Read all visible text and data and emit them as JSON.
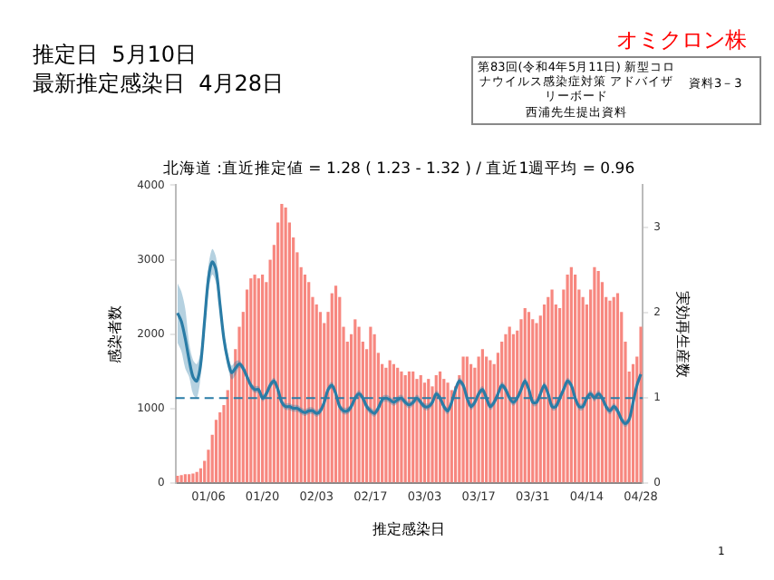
{
  "chart_data": {
    "type": "bar",
    "title": "北海道 :直近推定値 = 1.28 ( 1.23 - 1.32 ) / 直近1週平均 = 0.96",
    "xlabel": "推定感染日",
    "ylabel": "感染者数",
    "y2label": "実効再生産数",
    "annotations": [
      "推定日  5月10日",
      "最新推定感染日  4月28日",
      "オミクロン株",
      "第83回(令和4年5月11日) 新型コロナウイルス感染症対策 アドバイザリーボード",
      "資料3－3",
      "西浦先生提出資料",
      "1"
    ],
    "categories": [
      null,
      null,
      null,
      null,
      null,
      null,
      null,
      null,
      "01/06",
      null,
      null,
      null,
      null,
      null,
      null,
      null,
      null,
      null,
      null,
      null,
      null,
      null,
      "01/20",
      null,
      null,
      null,
      null,
      null,
      null,
      null,
      null,
      null,
      null,
      null,
      null,
      null,
      "02/03",
      null,
      null,
      null,
      null,
      null,
      null,
      null,
      null,
      null,
      null,
      null,
      null,
      null,
      "02/17",
      null,
      null,
      null,
      null,
      null,
      null,
      null,
      null,
      null,
      null,
      null,
      null,
      null,
      "03/03",
      null,
      null,
      null,
      null,
      null,
      null,
      null,
      null,
      null,
      null,
      null,
      null,
      null,
      "03/17",
      null,
      null,
      null,
      null,
      null,
      null,
      null,
      null,
      null,
      null,
      null,
      null,
      null,
      "03/31",
      null,
      null,
      null,
      null,
      null,
      null,
      null,
      null,
      null,
      null,
      null,
      null,
      null,
      "04/14",
      null,
      null,
      null,
      null,
      null,
      null,
      null,
      null,
      null,
      null,
      null,
      null,
      null,
      "04/28"
    ],
    "series": [
      {
        "color": "#f7877f",
        "values": [
          100,
          110,
          120,
          120,
          130,
          150,
          200,
          300,
          450,
          650,
          850,
          950,
          1050,
          1250,
          1500,
          1800,
          2100,
          2300,
          2600,
          2750,
          2800,
          2750,
          2800,
          2700,
          3000,
          3200,
          3500,
          3750,
          3700,
          3500,
          3300,
          3100,
          2900,
          2800,
          2700,
          2500,
          2400,
          2300,
          2150,
          2300,
          2550,
          2650,
          2500,
          2100,
          1900,
          2000,
          2200,
          2100,
          1900,
          1800,
          2100,
          2000,
          1750,
          1600,
          1550,
          1650,
          1600,
          1550,
          1500,
          1450,
          1500,
          1500,
          1400,
          1450,
          1350,
          1400,
          1300,
          1450,
          1500,
          1400,
          1350,
          1250,
          1300,
          1450,
          1700,
          1700,
          1600,
          1550,
          1700,
          1800,
          1700,
          1650,
          1600,
          1750,
          1900,
          2000,
          2100,
          2000,
          2050,
          2200,
          2350,
          2300,
          2200,
          2150,
          2250,
          2400,
          2500,
          2600,
          2400,
          2350,
          2600,
          2800,
          2900,
          2800,
          2600,
          2500,
          2400,
          2600,
          2900,
          2850,
          2700,
          2500,
          2450,
          2500,
          2550,
          2300,
          1900,
          1500,
          1600,
          1700,
          2100
        ]
      },
      {
        "type": "line",
        "axis": "y2",
        "color": "#2a7ca6",
        "values": [
          2.0,
          1.9,
          1.7,
          1.45,
          1.25,
          1.2,
          1.4,
          1.9,
          2.4,
          2.6,
          2.5,
          2.1,
          1.7,
          1.45,
          1.3,
          1.35,
          1.4,
          1.35,
          1.25,
          1.15,
          1.1,
          1.1,
          1.0,
          1.05,
          1.15,
          1.2,
          1.1,
          0.95,
          0.9,
          0.9,
          0.88,
          0.88,
          0.85,
          0.83,
          0.85,
          0.85,
          0.82,
          0.85,
          0.95,
          1.1,
          1.15,
          1.05,
          0.9,
          0.85,
          0.85,
          0.9,
          1.0,
          1.05,
          1.0,
          0.9,
          0.85,
          0.82,
          0.88,
          0.98,
          1.0,
          0.98,
          0.95,
          0.98,
          1.0,
          0.95,
          0.92,
          0.95,
          1.0,
          0.95,
          0.9,
          0.9,
          0.95,
          1.05,
          1.0,
          0.9,
          0.85,
          0.95,
          1.1,
          1.2,
          1.15,
          1.0,
          0.9,
          0.95,
          1.05,
          1.1,
          1.0,
          0.9,
          0.95,
          1.05,
          1.15,
          1.1,
          1.0,
          0.95,
          1.0,
          1.1,
          1.2,
          1.1,
          0.95,
          0.95,
          1.05,
          1.15,
          1.05,
          0.9,
          0.9,
          1.0,
          1.1,
          1.2,
          1.15,
          1.0,
          0.9,
          0.9,
          1.0,
          1.05,
          1.0,
          1.05,
          1.0,
          0.9,
          0.85,
          0.9,
          0.85,
          0.75,
          0.7,
          0.75,
          0.95,
          1.15,
          1.28
        ],
        "lower": [
          1.65,
          1.55,
          1.35,
          1.25,
          1.05,
          1.0,
          1.25,
          1.75,
          2.25,
          2.45,
          2.35,
          2.02,
          1.62,
          1.37,
          1.22,
          1.27,
          1.36,
          1.31,
          1.21,
          1.11,
          1.06,
          1.06,
          0.96,
          1.01,
          1.11,
          1.16,
          1.06,
          0.91,
          0.86,
          0.86,
          0.84,
          0.84,
          0.81,
          0.79,
          0.81,
          0.81,
          0.78,
          0.81,
          0.91,
          1.06,
          1.11,
          1.01,
          0.86,
          0.81,
          0.81,
          0.86,
          0.96,
          1.01,
          0.96,
          0.86,
          0.81,
          0.78,
          0.84,
          0.94,
          0.96,
          0.94,
          0.91,
          0.94,
          0.96,
          0.91,
          0.88,
          0.91,
          0.96,
          0.91,
          0.86,
          0.86,
          0.91,
          1.01,
          0.96,
          0.86,
          0.81,
          0.91,
          1.06,
          1.16,
          1.11,
          0.96,
          0.86,
          0.91,
          1.01,
          1.06,
          0.96,
          0.86,
          0.91,
          1.01,
          1.11,
          1.06,
          0.96,
          0.91,
          0.96,
          1.06,
          1.16,
          1.06,
          0.91,
          0.91,
          1.01,
          1.11,
          1.01,
          0.86,
          0.86,
          0.96,
          1.06,
          1.16,
          1.11,
          0.96,
          0.86,
          0.86,
          0.96,
          1.01,
          0.96,
          1.01,
          0.96,
          0.86,
          0.81,
          0.86,
          0.81,
          0.71,
          0.66,
          0.71,
          0.91,
          1.1,
          1.23
        ],
        "upper": [
          2.35,
          2.25,
          2.05,
          1.65,
          1.45,
          1.4,
          1.55,
          2.05,
          2.55,
          2.75,
          2.65,
          2.18,
          1.78,
          1.53,
          1.38,
          1.43,
          1.44,
          1.39,
          1.29,
          1.19,
          1.14,
          1.14,
          1.04,
          1.09,
          1.19,
          1.24,
          1.14,
          0.99,
          0.94,
          0.94,
          0.92,
          0.92,
          0.89,
          0.87,
          0.89,
          0.89,
          0.86,
          0.89,
          0.99,
          1.14,
          1.19,
          1.09,
          0.94,
          0.89,
          0.89,
          0.94,
          1.04,
          1.09,
          1.04,
          0.94,
          0.89,
          0.86,
          0.92,
          1.02,
          1.04,
          1.02,
          0.99,
          1.02,
          1.04,
          0.99,
          0.96,
          0.99,
          1.04,
          0.99,
          0.94,
          0.94,
          0.99,
          1.09,
          1.04,
          0.94,
          0.89,
          0.99,
          1.14,
          1.24,
          1.19,
          1.04,
          0.94,
          0.99,
          1.09,
          1.14,
          1.04,
          0.94,
          0.99,
          1.09,
          1.19,
          1.14,
          1.04,
          0.99,
          1.04,
          1.14,
          1.24,
          1.14,
          0.99,
          0.99,
          1.09,
          1.19,
          1.09,
          0.94,
          0.94,
          1.04,
          1.14,
          1.24,
          1.19,
          1.04,
          0.94,
          0.94,
          1.04,
          1.09,
          1.04,
          1.09,
          1.04,
          0.94,
          0.89,
          0.94,
          0.89,
          0.79,
          0.74,
          0.79,
          0.99,
          1.2,
          1.32
        ]
      }
    ],
    "ylim": [
      0,
      4000
    ],
    "yticks": [
      0,
      1000,
      2000,
      3000,
      4000
    ],
    "y2lim": [
      0,
      3.5
    ],
    "y2ticks": [
      0,
      1,
      2,
      3
    ],
    "ref_lines": [
      {
        "axis": "y2",
        "value": 1,
        "color": "#2a7ca6",
        "line_style": "dashed"
      }
    ],
    "legend": false
  }
}
